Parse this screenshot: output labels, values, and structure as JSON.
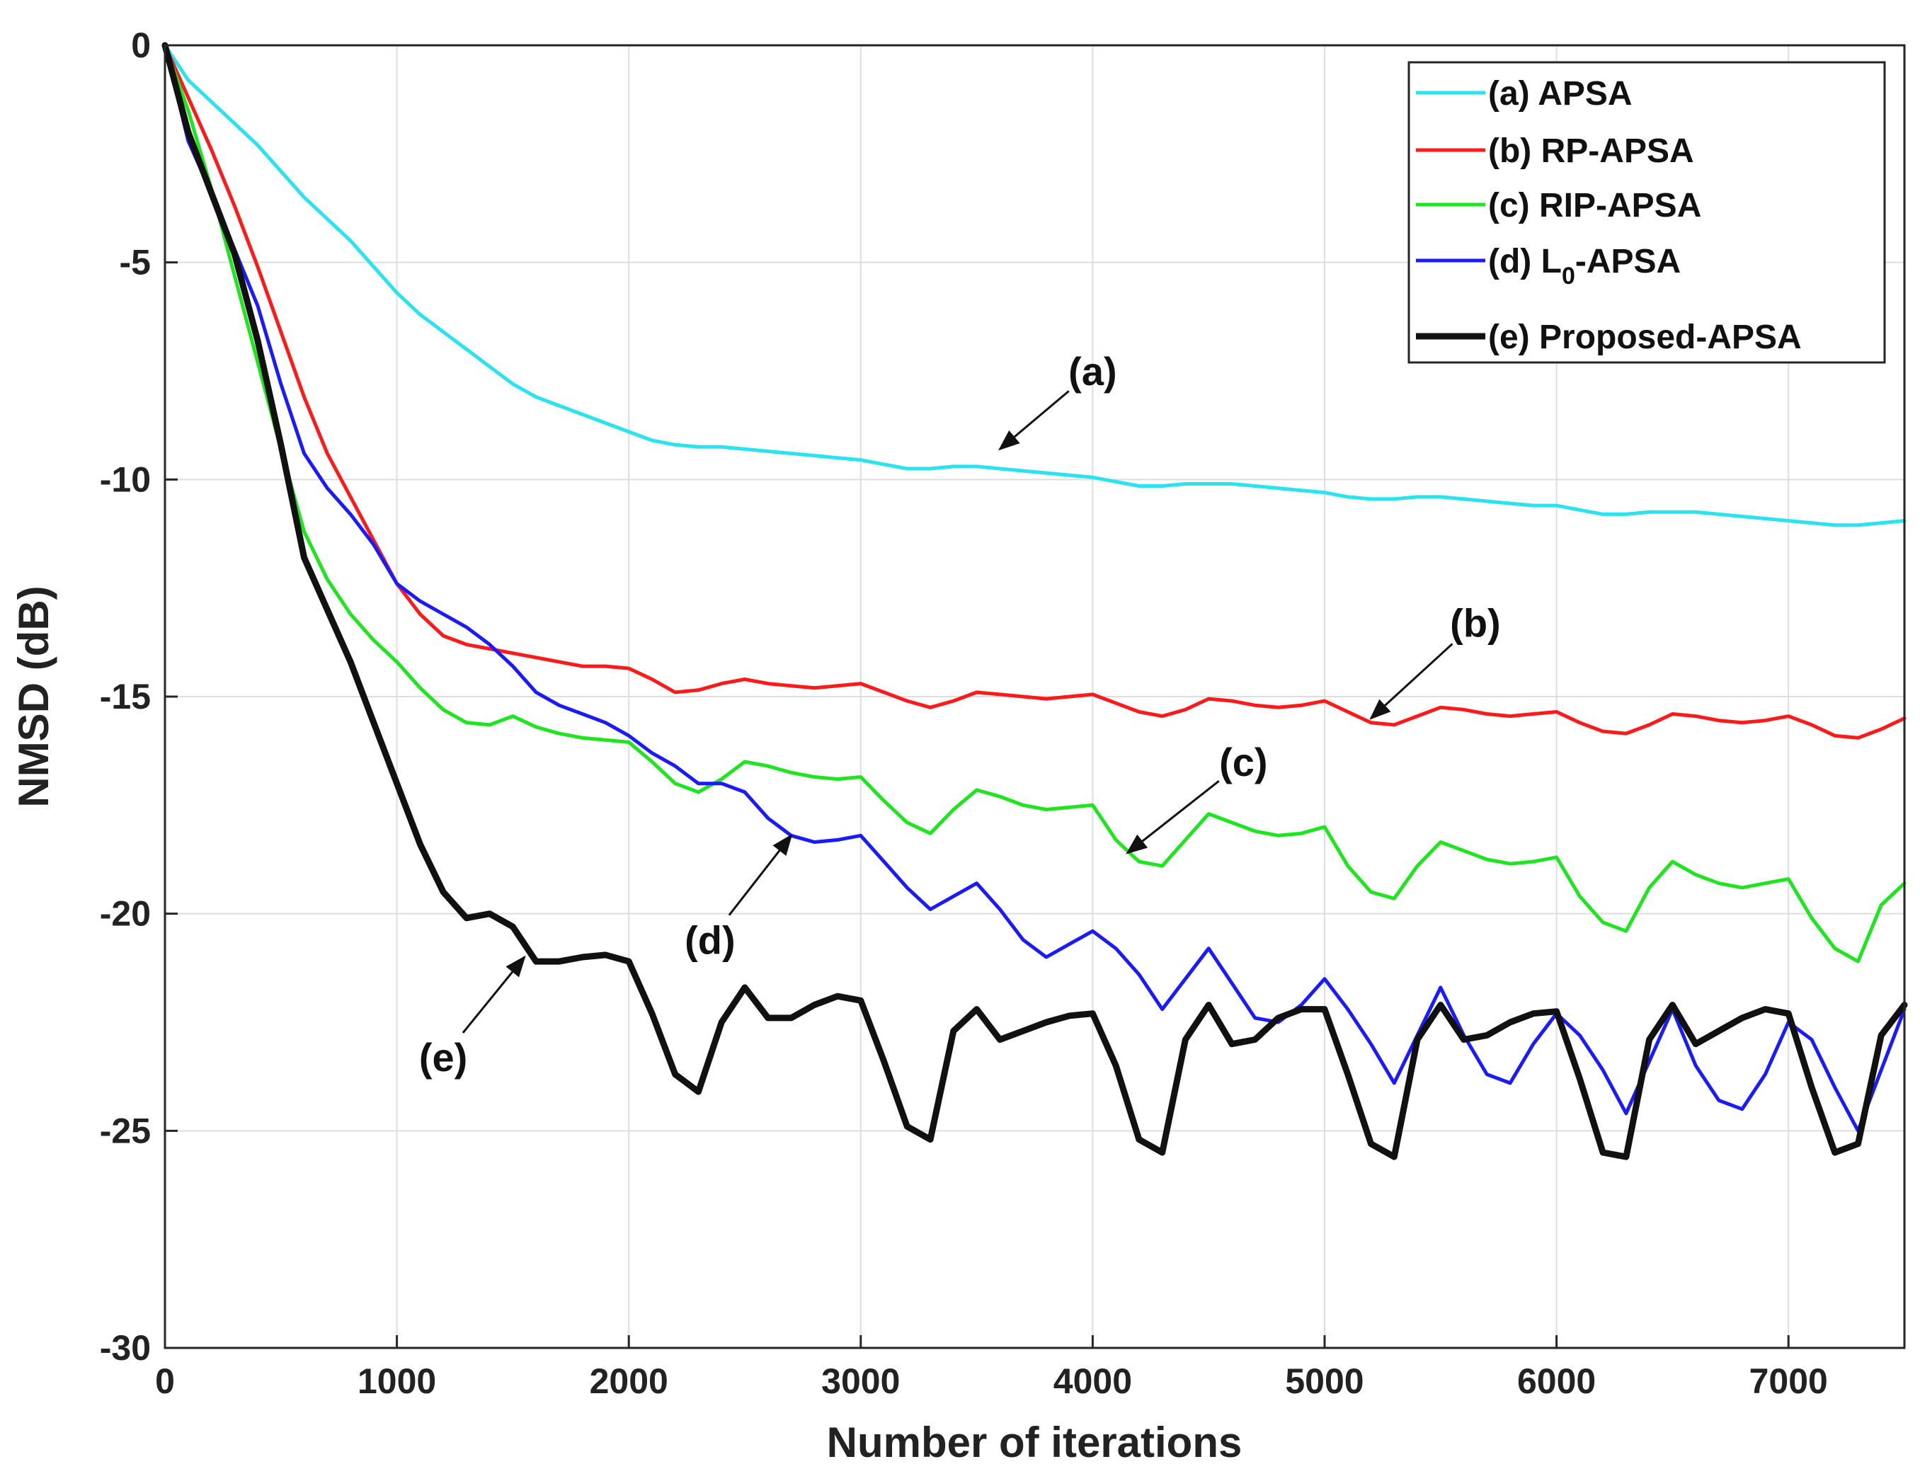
{
  "chart_data": {
    "type": "line",
    "title": "",
    "xlabel": "Number of iterations",
    "ylabel": "NMSD (dB)",
    "xlim": [
      0,
      7500
    ],
    "ylim": [
      -30,
      0
    ],
    "xticks": [
      0,
      1000,
      2000,
      3000,
      4000,
      5000,
      6000,
      7000
    ],
    "yticks": [
      0,
      -5,
      -10,
      -15,
      -20,
      -25,
      -30
    ],
    "xtick_labels": [
      "0",
      "1000",
      "2000",
      "3000",
      "4000",
      "5000",
      "6000",
      "7000"
    ],
    "ytick_labels": [
      "0",
      "-5",
      "-10",
      "-15",
      "-20",
      "-25",
      "-30"
    ],
    "grid": true,
    "legend_position": "top-right",
    "series": [
      {
        "name": "(a) APSA",
        "legend": {
          "base": "(a) APSA",
          "sub": "",
          "suffix": ""
        },
        "color": "#29e3f0",
        "x": [
          0,
          100,
          200,
          300,
          400,
          500,
          600,
          700,
          800,
          900,
          1000,
          1100,
          1200,
          1300,
          1400,
          1500,
          1600,
          1700,
          1800,
          1900,
          2000,
          2100,
          2200,
          2300,
          2400,
          2500,
          2600,
          2700,
          2800,
          2900,
          3000,
          3100,
          3200,
          3300,
          3400,
          3500,
          3600,
          3700,
          3800,
          3900,
          4000,
          4100,
          4200,
          4300,
          4400,
          4500,
          4600,
          4700,
          4800,
          4900,
          5000,
          5100,
          5200,
          5300,
          5400,
          5500,
          5600,
          5700,
          5800,
          5900,
          6000,
          6100,
          6200,
          6300,
          6400,
          6500,
          6600,
          6700,
          6800,
          6900,
          7000,
          7100,
          7200,
          7300,
          7400,
          7500
        ],
        "y": [
          0,
          -0.8,
          -1.3,
          -1.8,
          -2.3,
          -2.9,
          -3.5,
          -4.0,
          -4.5,
          -5.1,
          -5.7,
          -6.2,
          -6.6,
          -7.0,
          -7.4,
          -7.8,
          -8.1,
          -8.3,
          -8.5,
          -8.7,
          -8.9,
          -9.1,
          -9.2,
          -9.25,
          -9.25,
          -9.3,
          -9.35,
          -9.4,
          -9.45,
          -9.5,
          -9.55,
          -9.65,
          -9.75,
          -9.75,
          -9.7,
          -9.7,
          -9.75,
          -9.8,
          -9.85,
          -9.9,
          -9.95,
          -10.05,
          -10.15,
          -10.15,
          -10.1,
          -10.1,
          -10.1,
          -10.15,
          -10.2,
          -10.25,
          -10.3,
          -10.4,
          -10.45,
          -10.45,
          -10.4,
          -10.4,
          -10.45,
          -10.5,
          -10.55,
          -10.6,
          -10.6,
          -10.7,
          -10.8,
          -10.8,
          -10.75,
          -10.75,
          -10.75,
          -10.8,
          -10.85,
          -10.9,
          -10.95,
          -11.0,
          -11.05,
          -11.05,
          -11.0,
          -10.95
        ]
      },
      {
        "name": "(b) RP-APSA",
        "legend": {
          "base": "(b) RP-APSA",
          "sub": "",
          "suffix": ""
        },
        "color": "#ff1a1a",
        "x": [
          0,
          100,
          200,
          300,
          400,
          500,
          600,
          700,
          800,
          900,
          1000,
          1100,
          1200,
          1300,
          1400,
          1500,
          1600,
          1700,
          1800,
          1900,
          2000,
          2100,
          2200,
          2300,
          2400,
          2500,
          2600,
          2700,
          2800,
          2900,
          3000,
          3100,
          3200,
          3300,
          3400,
          3500,
          3600,
          3700,
          3800,
          3900,
          4000,
          4100,
          4200,
          4300,
          4400,
          4500,
          4600,
          4700,
          4800,
          4900,
          5000,
          5100,
          5200,
          5300,
          5400,
          5500,
          5600,
          5700,
          5800,
          5900,
          6000,
          6100,
          6200,
          6300,
          6400,
          6500,
          6600,
          6700,
          6800,
          6900,
          7000,
          7100,
          7200,
          7300,
          7400,
          7500
        ],
        "y": [
          0,
          -1.2,
          -2.4,
          -3.7,
          -5.1,
          -6.6,
          -8.1,
          -9.4,
          -10.4,
          -11.4,
          -12.4,
          -13.1,
          -13.6,
          -13.8,
          -13.9,
          -14.0,
          -14.1,
          -14.2,
          -14.3,
          -14.3,
          -14.35,
          -14.6,
          -14.9,
          -14.85,
          -14.7,
          -14.6,
          -14.7,
          -14.75,
          -14.8,
          -14.75,
          -14.7,
          -14.9,
          -15.1,
          -15.25,
          -15.1,
          -14.9,
          -14.95,
          -15.0,
          -15.05,
          -15.0,
          -14.95,
          -15.15,
          -15.35,
          -15.45,
          -15.3,
          -15.05,
          -15.1,
          -15.2,
          -15.25,
          -15.2,
          -15.1,
          -15.35,
          -15.6,
          -15.65,
          -15.45,
          -15.25,
          -15.3,
          -15.4,
          -15.45,
          -15.4,
          -15.35,
          -15.6,
          -15.8,
          -15.85,
          -15.65,
          -15.4,
          -15.45,
          -15.55,
          -15.6,
          -15.55,
          -15.45,
          -15.65,
          -15.9,
          -15.95,
          -15.75,
          -15.5
        ]
      },
      {
        "name": "(c) RIP-APSA",
        "legend": {
          "base": "(c) RIP-APSA",
          "sub": "",
          "suffix": ""
        },
        "color": "#1ee61e",
        "x": [
          0,
          100,
          200,
          300,
          400,
          500,
          600,
          700,
          800,
          900,
          1000,
          1100,
          1200,
          1300,
          1400,
          1500,
          1600,
          1700,
          1800,
          1900,
          2000,
          2100,
          2200,
          2300,
          2400,
          2500,
          2600,
          2700,
          2800,
          2900,
          3000,
          3100,
          3200,
          3300,
          3400,
          3500,
          3600,
          3700,
          3800,
          3900,
          4000,
          4100,
          4200,
          4300,
          4400,
          4500,
          4600,
          4700,
          4800,
          4900,
          5000,
          5100,
          5200,
          5300,
          5400,
          5500,
          5600,
          5700,
          5800,
          5900,
          6000,
          6100,
          6200,
          6300,
          6400,
          6500,
          6600,
          6700,
          6800,
          6900,
          7000,
          7100,
          7200,
          7300,
          7400,
          7500
        ],
        "y": [
          0,
          -1.5,
          -3.3,
          -5.3,
          -7.3,
          -9.3,
          -11.2,
          -12.3,
          -13.1,
          -13.7,
          -14.2,
          -14.8,
          -15.3,
          -15.6,
          -15.65,
          -15.45,
          -15.7,
          -15.85,
          -15.95,
          -16.0,
          -16.05,
          -16.5,
          -17.0,
          -17.2,
          -16.9,
          -16.5,
          -16.6,
          -16.75,
          -16.85,
          -16.9,
          -16.85,
          -17.4,
          -17.9,
          -18.15,
          -17.6,
          -17.15,
          -17.3,
          -17.5,
          -17.6,
          -17.55,
          -17.5,
          -18.3,
          -18.8,
          -18.9,
          -18.3,
          -17.7,
          -17.9,
          -18.1,
          -18.2,
          -18.15,
          -18.0,
          -18.9,
          -19.5,
          -19.65,
          -18.9,
          -18.35,
          -18.55,
          -18.75,
          -18.85,
          -18.8,
          -18.7,
          -19.6,
          -20.2,
          -20.4,
          -19.4,
          -18.8,
          -19.1,
          -19.3,
          -19.4,
          -19.3,
          -19.2,
          -20.1,
          -20.8,
          -21.1,
          -19.8,
          -19.3
        ]
      },
      {
        "name": "(d) L0-APSA",
        "legend": {
          "base": "(d) L",
          "sub": "0",
          "suffix": "-APSA"
        },
        "color": "#1a1aff",
        "x": [
          0,
          100,
          200,
          300,
          400,
          500,
          600,
          700,
          800,
          900,
          1000,
          1100,
          1200,
          1300,
          1400,
          1500,
          1600,
          1700,
          1800,
          1900,
          2000,
          2100,
          2200,
          2300,
          2400,
          2500,
          2600,
          2700,
          2800,
          2900,
          3000,
          3100,
          3200,
          3300,
          3400,
          3500,
          3600,
          3700,
          3800,
          3900,
          4000,
          4100,
          4200,
          4300,
          4400,
          4500,
          4600,
          4700,
          4800,
          4900,
          5000,
          5100,
          5200,
          5300,
          5400,
          5500,
          5600,
          5700,
          5800,
          5900,
          6000,
          6100,
          6200,
          6300,
          6400,
          6500,
          6600,
          6700,
          6800,
          6900,
          7000,
          7100,
          7200,
          7300,
          7400,
          7500
        ],
        "y": [
          0,
          -2.2,
          -3.4,
          -4.7,
          -6.0,
          -7.8,
          -9.4,
          -10.2,
          -10.8,
          -11.5,
          -12.4,
          -12.8,
          -13.1,
          -13.4,
          -13.8,
          -14.3,
          -14.9,
          -15.2,
          -15.4,
          -15.6,
          -15.9,
          -16.3,
          -16.6,
          -17.0,
          -17.0,
          -17.2,
          -17.8,
          -18.2,
          -18.35,
          -18.3,
          -18.2,
          -18.8,
          -19.4,
          -19.9,
          -19.6,
          -19.3,
          -19.9,
          -20.6,
          -21.0,
          -20.7,
          -20.4,
          -20.8,
          -21.4,
          -22.2,
          -21.5,
          -20.8,
          -21.6,
          -22.4,
          -22.5,
          -22.1,
          -21.5,
          -22.2,
          -23.0,
          -23.9,
          -22.8,
          -21.7,
          -22.8,
          -23.7,
          -23.9,
          -23.0,
          -22.3,
          -22.8,
          -23.6,
          -24.6,
          -23.4,
          -22.2,
          -23.5,
          -24.3,
          -24.5,
          -23.7,
          -22.5,
          -22.9,
          -24.0,
          -25.0,
          -23.6,
          -22.2
        ]
      },
      {
        "name": "(e) Proposed-APSA",
        "legend": {
          "base": "(e) Proposed-APSA",
          "sub": "",
          "suffix": ""
        },
        "color": "#111111",
        "x": [
          0,
          100,
          200,
          300,
          400,
          500,
          600,
          700,
          800,
          900,
          1000,
          1100,
          1200,
          1300,
          1400,
          1500,
          1600,
          1700,
          1800,
          1900,
          2000,
          2100,
          2200,
          2300,
          2400,
          2500,
          2600,
          2700,
          2800,
          2900,
          3000,
          3100,
          3200,
          3300,
          3400,
          3500,
          3600,
          3700,
          3800,
          3900,
          4000,
          4100,
          4200,
          4300,
          4400,
          4500,
          4600,
          4700,
          4800,
          4900,
          5000,
          5100,
          5200,
          5300,
          5400,
          5500,
          5600,
          5700,
          5800,
          5900,
          6000,
          6100,
          6200,
          6300,
          6400,
          6500,
          6600,
          6700,
          6800,
          6900,
          7000,
          7100,
          7200,
          7300,
          7400,
          7500
        ],
        "y": [
          0,
          -2.0,
          -3.4,
          -4.8,
          -6.8,
          -9.2,
          -11.8,
          -13.0,
          -14.2,
          -15.6,
          -17.0,
          -18.4,
          -19.5,
          -20.1,
          -20.0,
          -20.3,
          -21.1,
          -21.1,
          -21.0,
          -20.95,
          -21.1,
          -22.3,
          -23.7,
          -24.1,
          -22.5,
          -21.7,
          -22.4,
          -22.4,
          -22.1,
          -21.9,
          -22.0,
          -23.4,
          -24.9,
          -25.2,
          -22.7,
          -22.2,
          -22.9,
          -22.7,
          -22.5,
          -22.35,
          -22.3,
          -23.5,
          -25.2,
          -25.5,
          -22.9,
          -22.1,
          -23.0,
          -22.9,
          -22.4,
          -22.2,
          -22.2,
          -23.7,
          -25.3,
          -25.6,
          -22.9,
          -22.1,
          -22.9,
          -22.8,
          -22.5,
          -22.3,
          -22.25,
          -23.8,
          -25.5,
          -25.6,
          -22.9,
          -22.1,
          -23.0,
          -22.7,
          -22.4,
          -22.2,
          -22.3,
          -24.0,
          -25.5,
          -25.3,
          -22.8,
          -22.1
        ]
      }
    ],
    "annotations": [
      {
        "label": "(a)",
        "target": [
          3600,
          -9.3
        ],
        "text_pos": [
          4000,
          -7.5
        ]
      },
      {
        "label": "(b)",
        "target": [
          5200,
          -15.5
        ],
        "text_pos": [
          5650,
          -13.3
        ]
      },
      {
        "label": "(c)",
        "target": [
          4150,
          -18.6
        ],
        "text_pos": [
          4650,
          -16.5
        ]
      },
      {
        "label": "(d)",
        "target": [
          2700,
          -18.2
        ],
        "text_pos": [
          2350,
          -20.6
        ]
      },
      {
        "label": "(e)",
        "target": [
          1550,
          -21.0
        ],
        "text_pos": [
          1200,
          -23.3
        ]
      }
    ]
  }
}
